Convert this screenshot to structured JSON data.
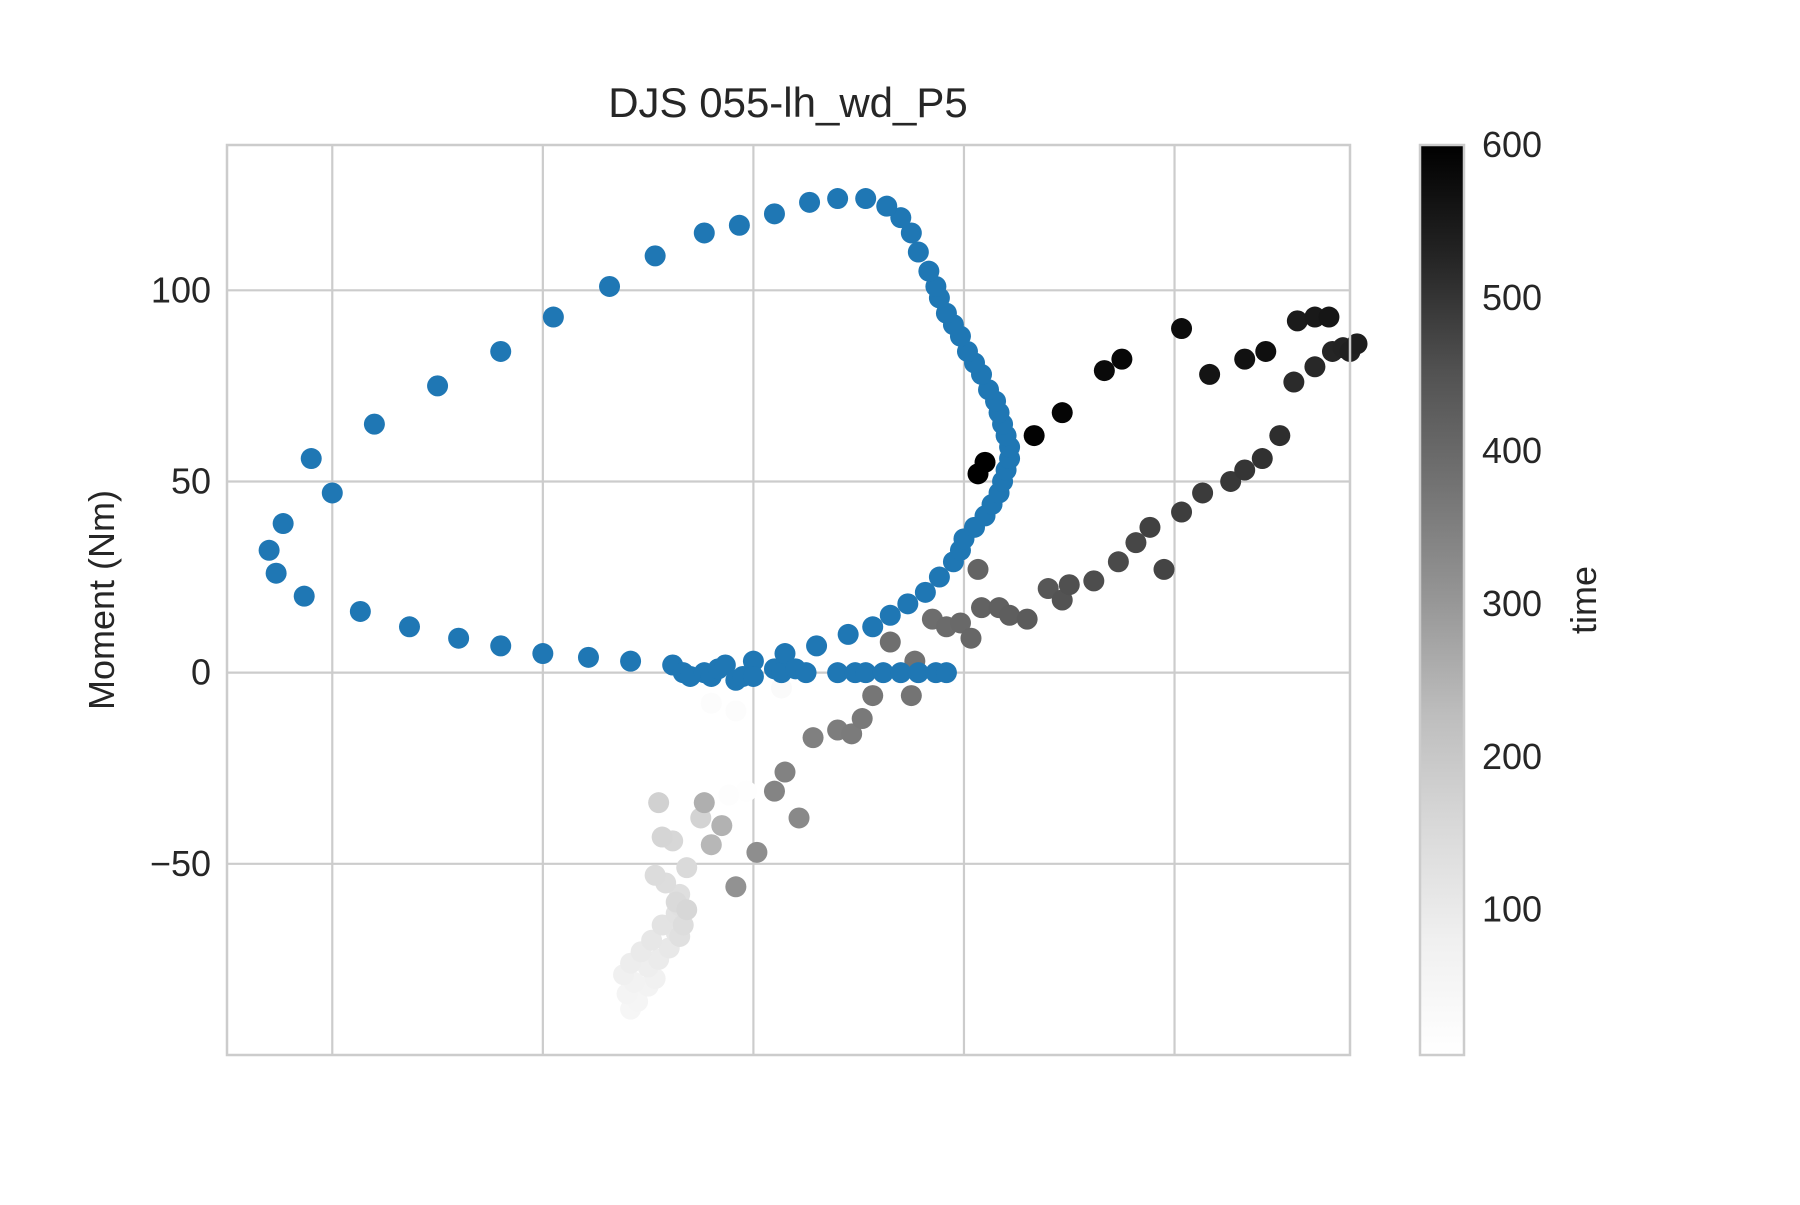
{
  "chart_data": {
    "type": "scatter",
    "title": "DJS 055-lh_wd_P5",
    "xlabel": "",
    "ylabel": "Moment (Nm)",
    "xlim": [
      -1.5,
      1.7
    ],
    "ylim": [
      -100,
      138
    ],
    "yticks": [
      -50,
      0,
      50,
      100
    ],
    "ytick_labels": [
      "−50",
      "0",
      "50",
      "100"
    ],
    "xticks": [
      -1.2,
      -0.6,
      0.0,
      0.6,
      1.2
    ],
    "grid": true,
    "colorbar": {
      "label": "time",
      "ticks": [
        100,
        200,
        300,
        400,
        500,
        600
      ],
      "range": [
        5,
        600
      ],
      "colormap": "Greys"
    },
    "series": [
      {
        "color": "#1f77b4",
        "points": [
          [
            -1.2,
            47
          ],
          [
            -1.34,
            39
          ],
          [
            -1.38,
            32
          ],
          [
            -1.36,
            26
          ],
          [
            -1.28,
            20
          ],
          [
            -1.12,
            16
          ],
          [
            -0.98,
            12
          ],
          [
            -0.84,
            9
          ],
          [
            -0.72,
            7
          ],
          [
            -0.6,
            5
          ],
          [
            -0.47,
            4
          ],
          [
            -0.35,
            3
          ],
          [
            -0.23,
            2
          ],
          [
            -0.2,
            0
          ],
          [
            -0.18,
            -1
          ],
          [
            -0.14,
            0
          ],
          [
            -0.12,
            -1
          ],
          [
            -0.1,
            1
          ],
          [
            -0.08,
            2
          ],
          [
            -0.05,
            -2
          ],
          [
            -0.03,
            -1
          ],
          [
            0.0,
            3
          ],
          [
            0.0,
            -1
          ],
          [
            0.06,
            1
          ],
          [
            0.08,
            0
          ],
          [
            0.09,
            5
          ],
          [
            0.12,
            1
          ],
          [
            0.15,
            0
          ],
          [
            0.18,
            7
          ],
          [
            0.24,
            0
          ],
          [
            0.27,
            10
          ],
          [
            0.29,
            0
          ],
          [
            0.32,
            0
          ],
          [
            0.34,
            12
          ],
          [
            0.37,
            0
          ],
          [
            0.39,
            15
          ],
          [
            0.42,
            0
          ],
          [
            0.44,
            18
          ],
          [
            0.47,
            0
          ],
          [
            0.49,
            21
          ],
          [
            0.52,
            0
          ],
          [
            0.53,
            25
          ],
          [
            0.55,
            0
          ],
          [
            0.57,
            29
          ],
          [
            0.59,
            32
          ],
          [
            0.6,
            35
          ],
          [
            0.63,
            38
          ],
          [
            0.66,
            41
          ],
          [
            0.68,
            44
          ],
          [
            0.7,
            47
          ],
          [
            0.71,
            50
          ],
          [
            0.72,
            53
          ],
          [
            0.73,
            56
          ],
          [
            0.73,
            59
          ],
          [
            0.72,
            62
          ],
          [
            0.71,
            65
          ],
          [
            0.7,
            68
          ],
          [
            0.69,
            71
          ],
          [
            0.67,
            74
          ],
          [
            0.65,
            78
          ],
          [
            0.63,
            81
          ],
          [
            0.61,
            84
          ],
          [
            0.59,
            88
          ],
          [
            0.57,
            91
          ],
          [
            0.55,
            94
          ],
          [
            0.53,
            98
          ],
          [
            0.52,
            101
          ],
          [
            0.5,
            105
          ],
          [
            0.47,
            110
          ],
          [
            0.45,
            115
          ],
          [
            0.42,
            119
          ],
          [
            0.38,
            122
          ],
          [
            0.32,
            124
          ],
          [
            0.24,
            124
          ],
          [
            0.16,
            123
          ],
          [
            0.06,
            120
          ],
          [
            -0.04,
            117
          ],
          [
            -0.14,
            115
          ],
          [
            -0.28,
            109
          ],
          [
            -0.41,
            101
          ],
          [
            -0.57,
            93
          ],
          [
            -0.72,
            84
          ],
          [
            -0.9,
            75
          ],
          [
            -1.08,
            65
          ],
          [
            -1.26,
            56
          ]
        ]
      },
      {
        "color_mode": "time",
        "points": [
          [
            -0.35,
            -88
          ],
          [
            -0.33,
            -86
          ],
          [
            -0.36,
            -84
          ],
          [
            -0.3,
            -82
          ],
          [
            -0.34,
            -81
          ],
          [
            -0.28,
            -80
          ],
          [
            -0.37,
            -79
          ],
          [
            -0.3,
            -77
          ],
          [
            -0.35,
            -76
          ],
          [
            -0.27,
            -75
          ],
          [
            -0.32,
            -73
          ],
          [
            -0.24,
            -72
          ],
          [
            -0.29,
            -70
          ],
          [
            -0.22,
            -68
          ],
          [
            -0.26,
            -66
          ],
          [
            -0.22,
            -63
          ],
          [
            -0.21,
            -61
          ],
          [
            -0.21,
            -58
          ],
          [
            -0.25,
            -55
          ],
          [
            -0.28,
            -53
          ],
          [
            -0.19,
            -51
          ],
          [
            -0.23,
            -44
          ],
          [
            -0.26,
            -43
          ],
          [
            -0.15,
            -38
          ],
          [
            -0.27,
            -34
          ],
          [
            -0.02,
            -31
          ],
          [
            -0.07,
            -32
          ],
          [
            -0.12,
            -8
          ],
          [
            -0.05,
            -10
          ],
          [
            0.08,
            -4
          ],
          [
            -0.21,
            -69
          ],
          [
            -0.2,
            -66
          ],
          [
            -0.22,
            -60
          ],
          [
            -0.19,
            -62
          ],
          [
            -0.12,
            -45
          ],
          [
            -0.09,
            -40
          ],
          [
            -0.14,
            -34
          ],
          [
            -0.05,
            -56
          ],
          [
            0.01,
            -47
          ],
          [
            0.13,
            -38
          ],
          [
            0.06,
            -31
          ],
          [
            0.09,
            -26
          ],
          [
            0.17,
            -17
          ],
          [
            0.24,
            -15
          ],
          [
            0.28,
            -16
          ],
          [
            0.31,
            -12
          ],
          [
            0.34,
            -6
          ],
          [
            0.45,
            -6
          ],
          [
            0.46,
            3
          ],
          [
            0.39,
            8
          ],
          [
            0.51,
            14
          ],
          [
            0.55,
            12
          ],
          [
            0.59,
            13
          ],
          [
            0.62,
            9
          ],
          [
            0.64,
            27
          ],
          [
            0.65,
            17
          ],
          [
            0.7,
            17
          ],
          [
            0.73,
            15
          ],
          [
            0.78,
            14
          ],
          [
            0.84,
            22
          ],
          [
            0.88,
            19
          ],
          [
            0.9,
            23
          ],
          [
            0.97,
            24
          ],
          [
            1.04,
            29
          ],
          [
            1.09,
            34
          ],
          [
            1.17,
            27
          ],
          [
            1.13,
            38
          ],
          [
            1.22,
            42
          ],
          [
            1.28,
            47
          ],
          [
            1.36,
            50
          ],
          [
            1.4,
            53
          ],
          [
            1.45,
            56
          ],
          [
            1.5,
            62
          ],
          [
            1.54,
            76
          ],
          [
            1.6,
            80
          ],
          [
            1.65,
            84
          ],
          [
            1.68,
            85
          ],
          [
            1.7,
            84
          ],
          [
            1.72,
            86
          ],
          [
            1.55,
            92
          ],
          [
            1.6,
            93
          ],
          [
            1.64,
            93
          ],
          [
            1.3,
            78
          ],
          [
            1.4,
            82
          ],
          [
            1.46,
            84
          ],
          [
            1.22,
            90
          ],
          [
            1.0,
            79
          ],
          [
            1.05,
            82
          ],
          [
            0.88,
            68
          ],
          [
            0.8,
            62
          ],
          [
            0.64,
            52
          ],
          [
            0.66,
            55
          ]
        ],
        "time": [
          50,
          55,
          60,
          65,
          70,
          75,
          80,
          85,
          90,
          95,
          100,
          105,
          110,
          115,
          120,
          125,
          130,
          135,
          140,
          145,
          150,
          160,
          165,
          170,
          175,
          12,
          15,
          18,
          22,
          30,
          130,
          140,
          150,
          160,
          240,
          250,
          255,
          310,
          320,
          330,
          340,
          345,
          350,
          355,
          360,
          365,
          370,
          375,
          380,
          385,
          390,
          395,
          400,
          405,
          410,
          415,
          420,
          425,
          430,
          440,
          450,
          455,
          460,
          465,
          470,
          475,
          480,
          485,
          490,
          495,
          500,
          505,
          510,
          515,
          520,
          525,
          530,
          535,
          540,
          545,
          550,
          555,
          560,
          565,
          570,
          575,
          580,
          585,
          590,
          595,
          600,
          600
        ]
      }
    ]
  }
}
